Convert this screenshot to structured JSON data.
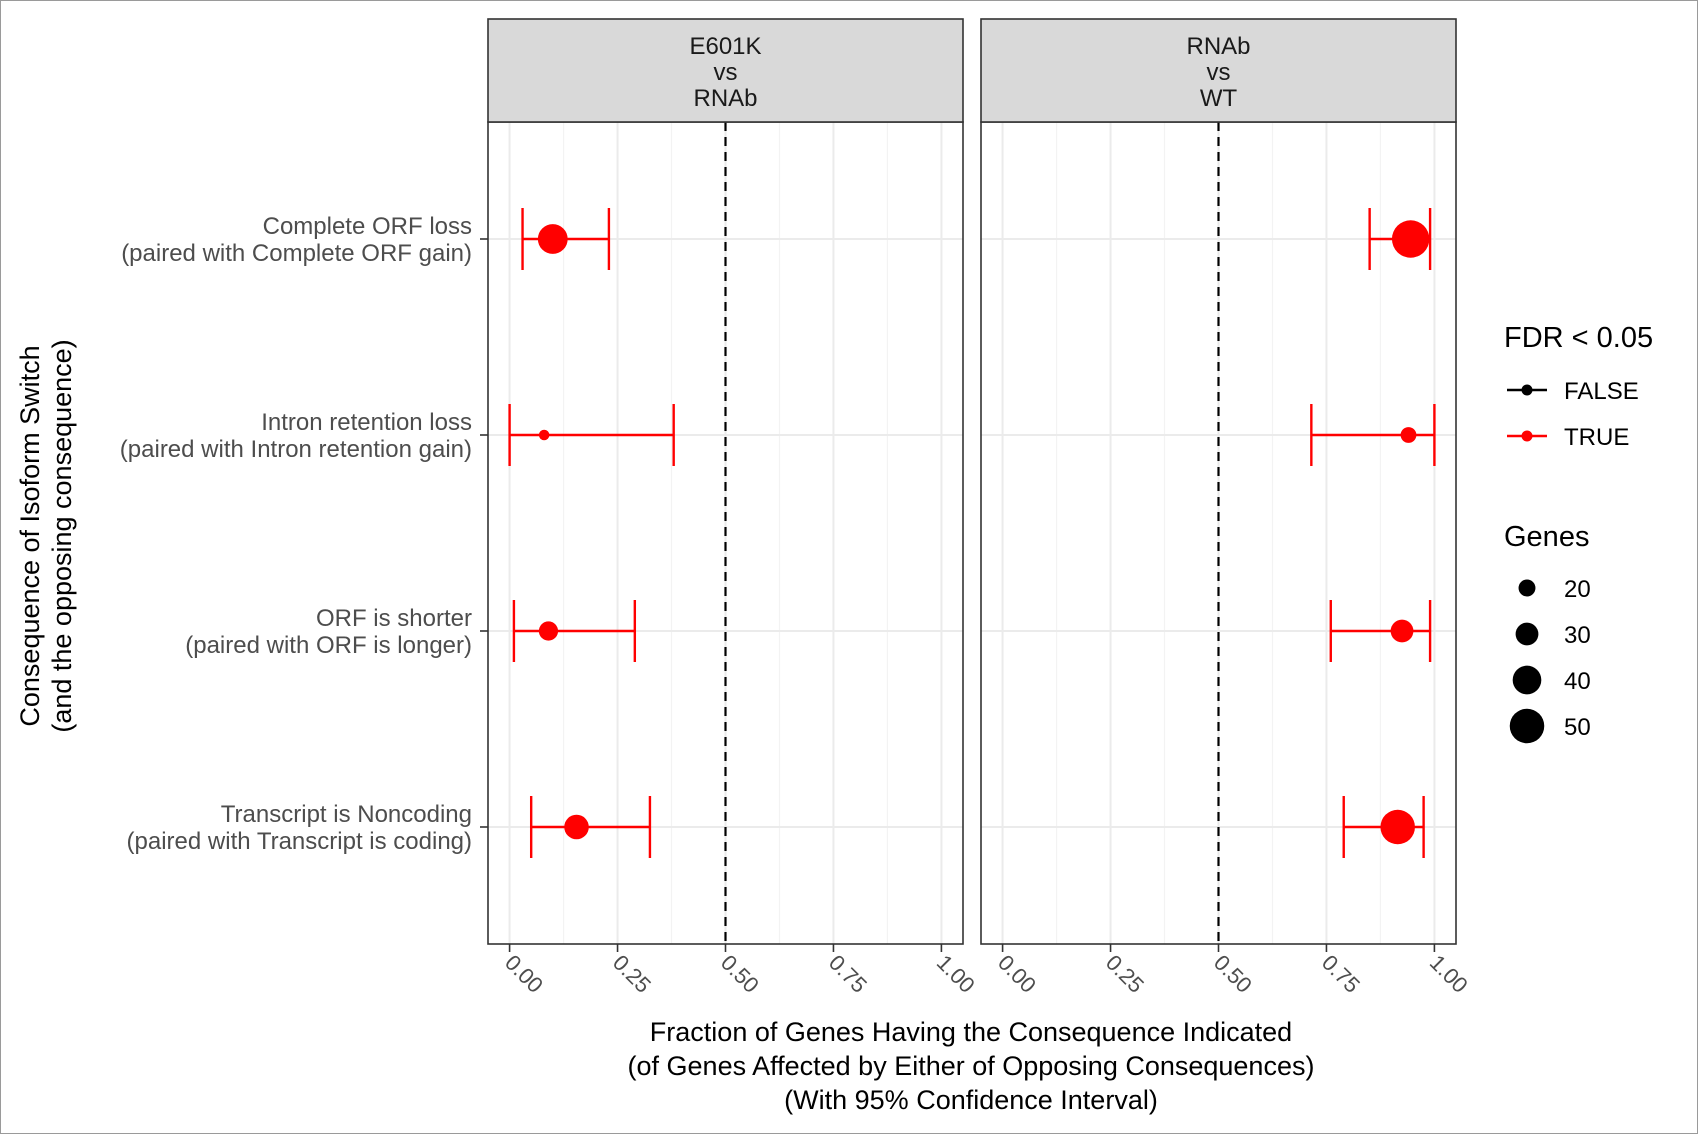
{
  "chart_data": {
    "type": "scatter",
    "y_axis_label": [
      "Consequence of Isoform Switch",
      "(and the opposing consequence)"
    ],
    "x_axis_label": [
      "Fraction of Genes Having the Consequence Indicated",
      "(of Genes Affected by Either of Opposing Consequences)",
      "(With 95% Confidence Interval)"
    ],
    "categories": [
      {
        "line1": "Complete ORF loss",
        "line2": "(paired with Complete ORF gain)"
      },
      {
        "line1": "Intron retention loss",
        "line2": "(paired with Intron retention gain)"
      },
      {
        "line1": "ORF is shorter",
        "line2": "(paired with ORF is longer)"
      },
      {
        "line1": "Transcript is Noncoding",
        "line2": "(paired with Transcript is coding)"
      }
    ],
    "xlim": [
      -0.05,
      1.05
    ],
    "x_ticks": [
      {
        "value": 0,
        "label": "0.00"
      },
      {
        "value": 0.25,
        "label": "0.25"
      },
      {
        "value": 0.5,
        "label": "0.50"
      },
      {
        "value": 0.75,
        "label": "0.75"
      },
      {
        "value": 1,
        "label": "1.00"
      }
    ],
    "reference_line": 0.5,
    "grid": true,
    "panels": [
      {
        "strip": [
          "E601K",
          "vs",
          "RNAb"
        ],
        "points": [
          {
            "category": "Complete ORF loss",
            "x": 0.1,
            "lo": 0.03,
            "hi": 0.23,
            "genes": 42,
            "fdr_sig": true
          },
          {
            "category": "Intron retention loss",
            "x": 0.08,
            "lo": 0.0,
            "hi": 0.38,
            "genes": 9,
            "fdr_sig": true
          },
          {
            "category": "ORF is shorter",
            "x": 0.09,
            "lo": 0.01,
            "hi": 0.29,
            "genes": 24,
            "fdr_sig": true
          },
          {
            "category": "Transcript is Noncoding",
            "x": 0.155,
            "lo": 0.05,
            "hi": 0.325,
            "genes": 33,
            "fdr_sig": true
          }
        ]
      },
      {
        "strip": [
          "RNAb",
          "vs",
          "WT"
        ],
        "points": [
          {
            "category": "Complete ORF loss",
            "x": 0.945,
            "lo": 0.85,
            "hi": 0.99,
            "genes": 55,
            "fdr_sig": true
          },
          {
            "category": "Intron retention loss",
            "x": 0.94,
            "lo": 0.715,
            "hi": 1.0,
            "genes": 18,
            "fdr_sig": true
          },
          {
            "category": "ORF is shorter",
            "x": 0.925,
            "lo": 0.76,
            "hi": 0.99,
            "genes": 30,
            "fdr_sig": true
          },
          {
            "category": "Transcript is Noncoding",
            "x": 0.915,
            "lo": 0.79,
            "hi": 0.975,
            "genes": 50,
            "fdr_sig": true
          }
        ]
      }
    ],
    "legend": {
      "placement": "right",
      "color_title": "FDR < 0.05",
      "color_items": [
        {
          "label": "FALSE",
          "color": "#000000"
        },
        {
          "label": "TRUE",
          "color": "#ff0000"
        }
      ],
      "size_title": "Genes",
      "size_items": [
        {
          "label": "20",
          "genes": 20
        },
        {
          "label": "30",
          "genes": 30
        },
        {
          "label": "40",
          "genes": 40
        },
        {
          "label": "50",
          "genes": 50
        }
      ]
    },
    "colors": {
      "true": "#ff0000",
      "false": "#000000",
      "strip_fill": "#d9d9d9",
      "grid": "#ebebeb"
    }
  }
}
